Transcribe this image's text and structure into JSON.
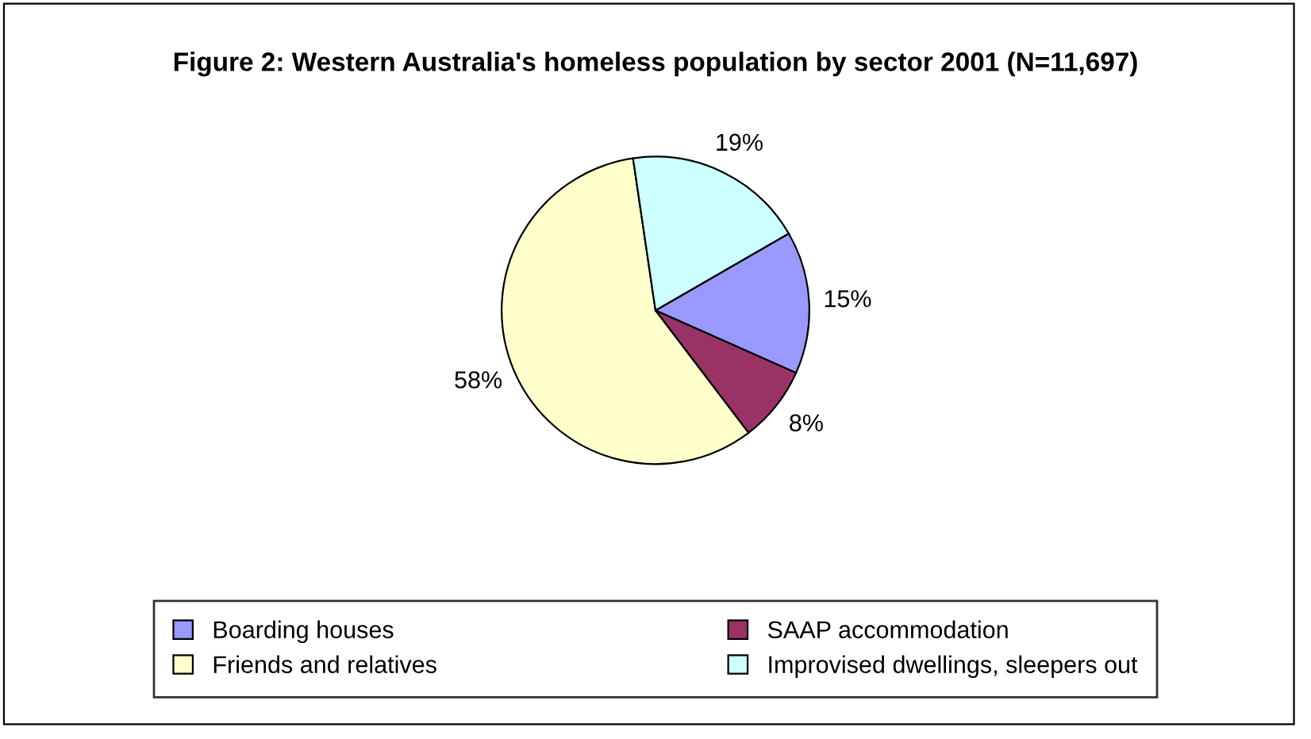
{
  "chart_data": {
    "type": "pie",
    "title": "Figure 2: Western Australia's homeless population by sector 2001 (N=11,697)",
    "categories": [
      "Boarding houses",
      "SAAP accommodation",
      "Friends and relatives",
      "Improvised dwellings, sleepers out"
    ],
    "values": [
      15,
      8,
      58,
      19
    ],
    "value_labels": [
      "15%",
      "8%",
      "58%",
      "19%"
    ],
    "colors": [
      "#9999ff",
      "#993366",
      "#ffffcc",
      "#ccffff"
    ],
    "legend": "bottom"
  }
}
